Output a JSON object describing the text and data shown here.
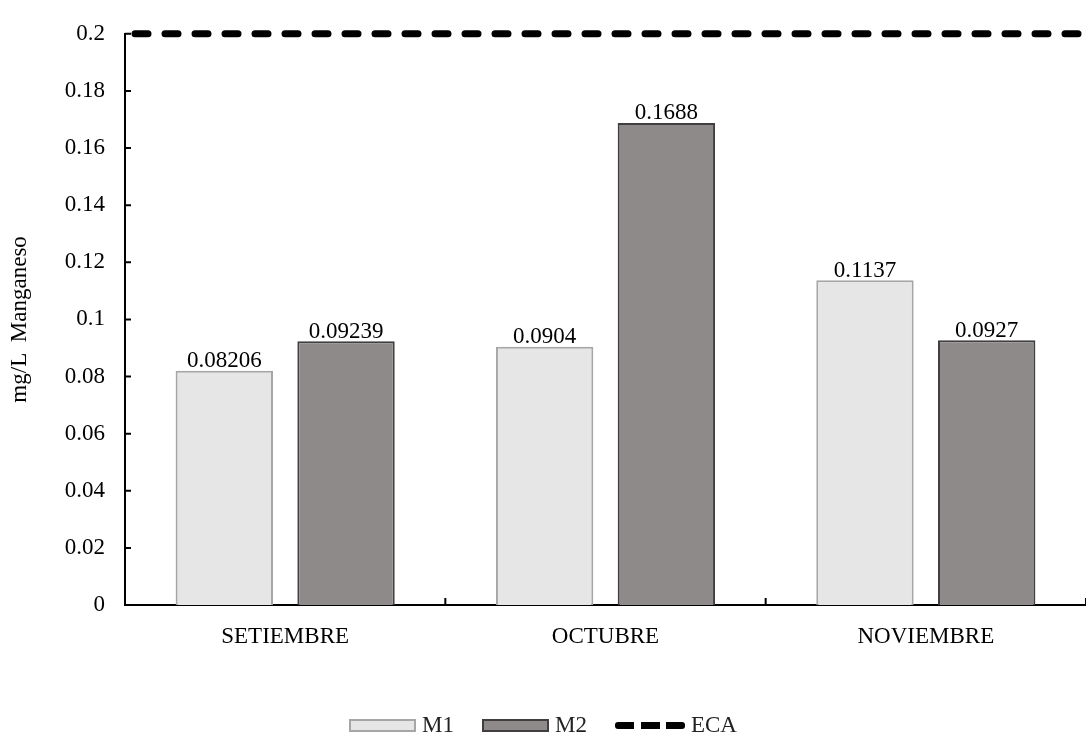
{
  "chart_data": {
    "type": "bar",
    "ylabel": "mg/L  Manganeso",
    "categories": [
      "SETIEMBRE",
      "OCTUBRE",
      "NOVIEMBRE"
    ],
    "series": [
      {
        "name": "M1",
        "color": "#e7e6e6",
        "values": [
          0.08206,
          0.0904,
          0.1137
        ]
      },
      {
        "name": "M2",
        "color": "#8e8a8a",
        "values": [
          0.09239,
          0.1688,
          0.0927
        ]
      }
    ],
    "ylim": [
      0,
      0.2
    ],
    "yticks": [
      0,
      0.02,
      0.04,
      0.06,
      0.08,
      0.1,
      0.12,
      0.14,
      0.16,
      0.18,
      0.2
    ],
    "ref_lines": [
      {
        "axis": "y",
        "value": 0.2,
        "label": "ECA",
        "color": "#000000",
        "line_style": "dashed"
      }
    ],
    "data_labels": true,
    "legend": "bottom",
    "grid": false
  }
}
